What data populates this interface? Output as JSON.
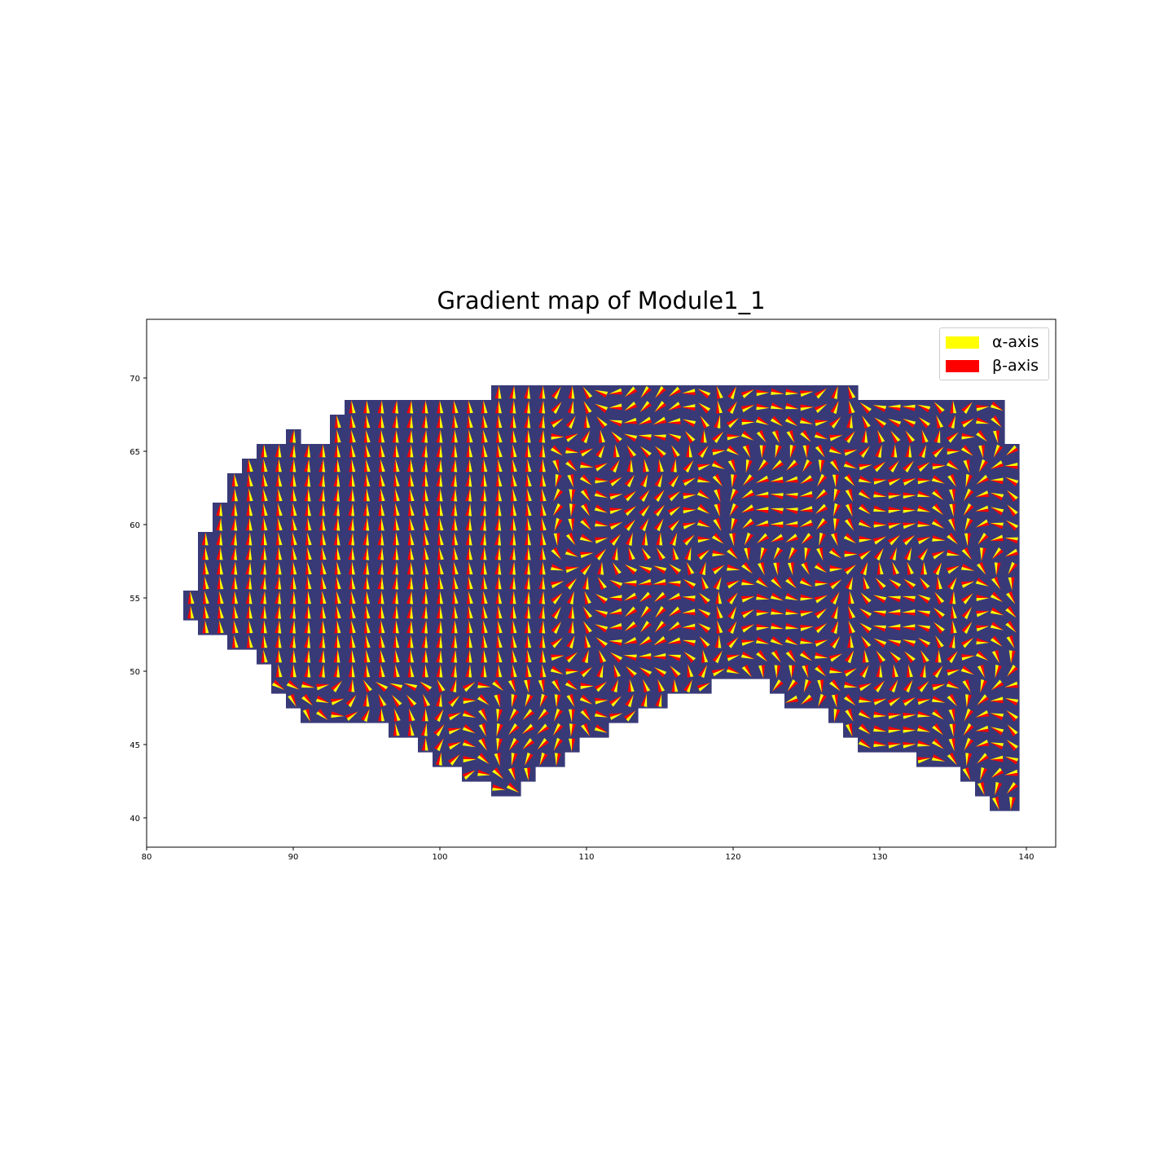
{
  "chart_data": {
    "type": "quiver",
    "title": "Gradient map of Module1_1",
    "xlabel": "",
    "ylabel": "",
    "xlim": [
      80,
      142
    ],
    "ylim": [
      38,
      74
    ],
    "xticks": [
      "80",
      "90",
      "100",
      "110",
      "120",
      "130",
      "140"
    ],
    "yticks": [
      "40",
      "45",
      "50",
      "55",
      "60",
      "65",
      "70"
    ],
    "grid": false,
    "legend_placement": "top-right",
    "background_color": "#383a78",
    "series": [
      {
        "name": "α-axis",
        "color": "#ffff00"
      },
      {
        "name": "β-axis",
        "color": "#ff0000"
      }
    ],
    "mask_rows": [
      {
        "y": 69,
        "x_from": 103.5,
        "x_to": 128.5
      },
      {
        "y": 68,
        "x_from": 93.5,
        "x_to": 138.5
      },
      {
        "y": 67,
        "x_from": 92.5,
        "x_to": 138.5
      },
      {
        "y": 66,
        "x_from": 92.5,
        "x_to": 138.5
      },
      {
        "y": 66,
        "x_from": 89.5,
        "x_to": 90.5
      },
      {
        "y": 65,
        "x_from": 87.5,
        "x_to": 139.5
      },
      {
        "y": 64,
        "x_from": 86.5,
        "x_to": 139.5
      },
      {
        "y": 63,
        "x_from": 85.5,
        "x_to": 139.5
      },
      {
        "y": 62,
        "x_from": 85.5,
        "x_to": 139.5
      },
      {
        "y": 61,
        "x_from": 84.5,
        "x_to": 139.5
      },
      {
        "y": 60,
        "x_from": 84.5,
        "x_to": 139.5
      },
      {
        "y": 59,
        "x_from": 83.5,
        "x_to": 139.5
      },
      {
        "y": 58,
        "x_from": 83.5,
        "x_to": 139.5
      },
      {
        "y": 57,
        "x_from": 83.5,
        "x_to": 139.5
      },
      {
        "y": 56,
        "x_from": 83.5,
        "x_to": 139.5
      },
      {
        "y": 55,
        "x_from": 82.5,
        "x_to": 139.5
      },
      {
        "y": 54,
        "x_from": 82.5,
        "x_to": 139.5
      },
      {
        "y": 53,
        "x_from": 83.5,
        "x_to": 139.5
      },
      {
        "y": 52,
        "x_from": 85.5,
        "x_to": 139.5
      },
      {
        "y": 51,
        "x_from": 87.5,
        "x_to": 139.5
      },
      {
        "y": 50,
        "x_from": 88.5,
        "x_to": 139.5
      },
      {
        "y": 49,
        "x_from": 88.5,
        "x_to": 118.5
      },
      {
        "y": 49,
        "x_from": 122.5,
        "x_to": 139.5
      },
      {
        "y": 48,
        "x_from": 89.5,
        "x_to": 115.5
      },
      {
        "y": 48,
        "x_from": 123.5,
        "x_to": 139.5
      },
      {
        "y": 47,
        "x_from": 90.5,
        "x_to": 113.5
      },
      {
        "y": 47,
        "x_from": 126.5,
        "x_to": 139.5
      },
      {
        "y": 46,
        "x_from": 96.5,
        "x_to": 111.5
      },
      {
        "y": 46,
        "x_from": 127.5,
        "x_to": 139.5
      },
      {
        "y": 45,
        "x_from": 98.5,
        "x_to": 109.5
      },
      {
        "y": 45,
        "x_from": 128.5,
        "x_to": 139.5
      },
      {
        "y": 44,
        "x_from": 99.5,
        "x_to": 108.5
      },
      {
        "y": 44,
        "x_from": 132.5,
        "x_to": 139.5
      },
      {
        "y": 43,
        "x_from": 101.5,
        "x_to": 106.5
      },
      {
        "y": 43,
        "x_from": 135.5,
        "x_to": 139.5
      },
      {
        "y": 42,
        "x_from": 103.5,
        "x_to": 105.5
      },
      {
        "y": 42,
        "x_from": 136.5,
        "x_to": 139.5
      },
      {
        "y": 41,
        "x_from": 137.5,
        "x_to": 139.5
      }
    ]
  }
}
